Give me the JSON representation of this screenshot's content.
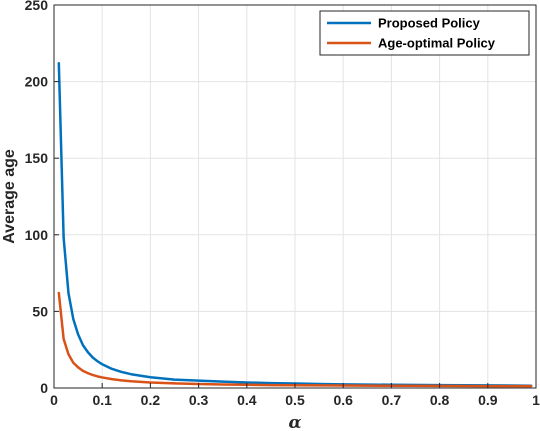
{
  "chart_data": {
    "type": "line",
    "title": "",
    "xlabel": "α",
    "ylabel": "Average age",
    "xlim": [
      0,
      1
    ],
    "ylim": [
      0,
      250
    ],
    "xticks": [
      "0",
      "0.1",
      "0.2",
      "0.3",
      "0.4",
      "0.5",
      "0.6",
      "0.7",
      "0.8",
      "0.9",
      "1"
    ],
    "yticks": [
      "0",
      "50",
      "100",
      "150",
      "200",
      "250"
    ],
    "grid": true,
    "legend_position": "top-right",
    "series": [
      {
        "name": "Proposed Policy",
        "color": "#0072BD",
        "x": [
          0.01,
          0.02,
          0.03,
          0.04,
          0.05,
          0.06,
          0.07,
          0.08,
          0.09,
          0.1,
          0.12,
          0.14,
          0.16,
          0.18,
          0.2,
          0.25,
          0.3,
          0.35,
          0.4,
          0.45,
          0.5,
          0.55,
          0.6,
          0.7,
          0.8,
          0.9,
          0.99
        ],
        "y": [
          212,
          98,
          62,
          45,
          35,
          28,
          23.5,
          20,
          17.5,
          15.5,
          12.5,
          10.5,
          9,
          8,
          7,
          5.5,
          4.8,
          4.2,
          3.6,
          3.2,
          2.9,
          2.6,
          2.4,
          2.1,
          1.9,
          1.7,
          1.5
        ]
      },
      {
        "name": "Age-optimal Policy",
        "color": "#D95319",
        "x": [
          0.01,
          0.02,
          0.03,
          0.04,
          0.05,
          0.06,
          0.07,
          0.08,
          0.09,
          0.1,
          0.12,
          0.14,
          0.16,
          0.18,
          0.2,
          0.25,
          0.3,
          0.35,
          0.4,
          0.45,
          0.5,
          0.55,
          0.6,
          0.7,
          0.8,
          0.9,
          0.99
        ],
        "y": [
          62,
          32,
          22,
          16.5,
          13.5,
          11.2,
          9.7,
          8.5,
          7.6,
          6.9,
          5.8,
          5.0,
          4.4,
          4.0,
          3.6,
          3.0,
          2.6,
          2.3,
          2.1,
          1.9,
          1.8,
          1.7,
          1.6,
          1.45,
          1.35,
          1.25,
          1.2
        ]
      }
    ]
  }
}
